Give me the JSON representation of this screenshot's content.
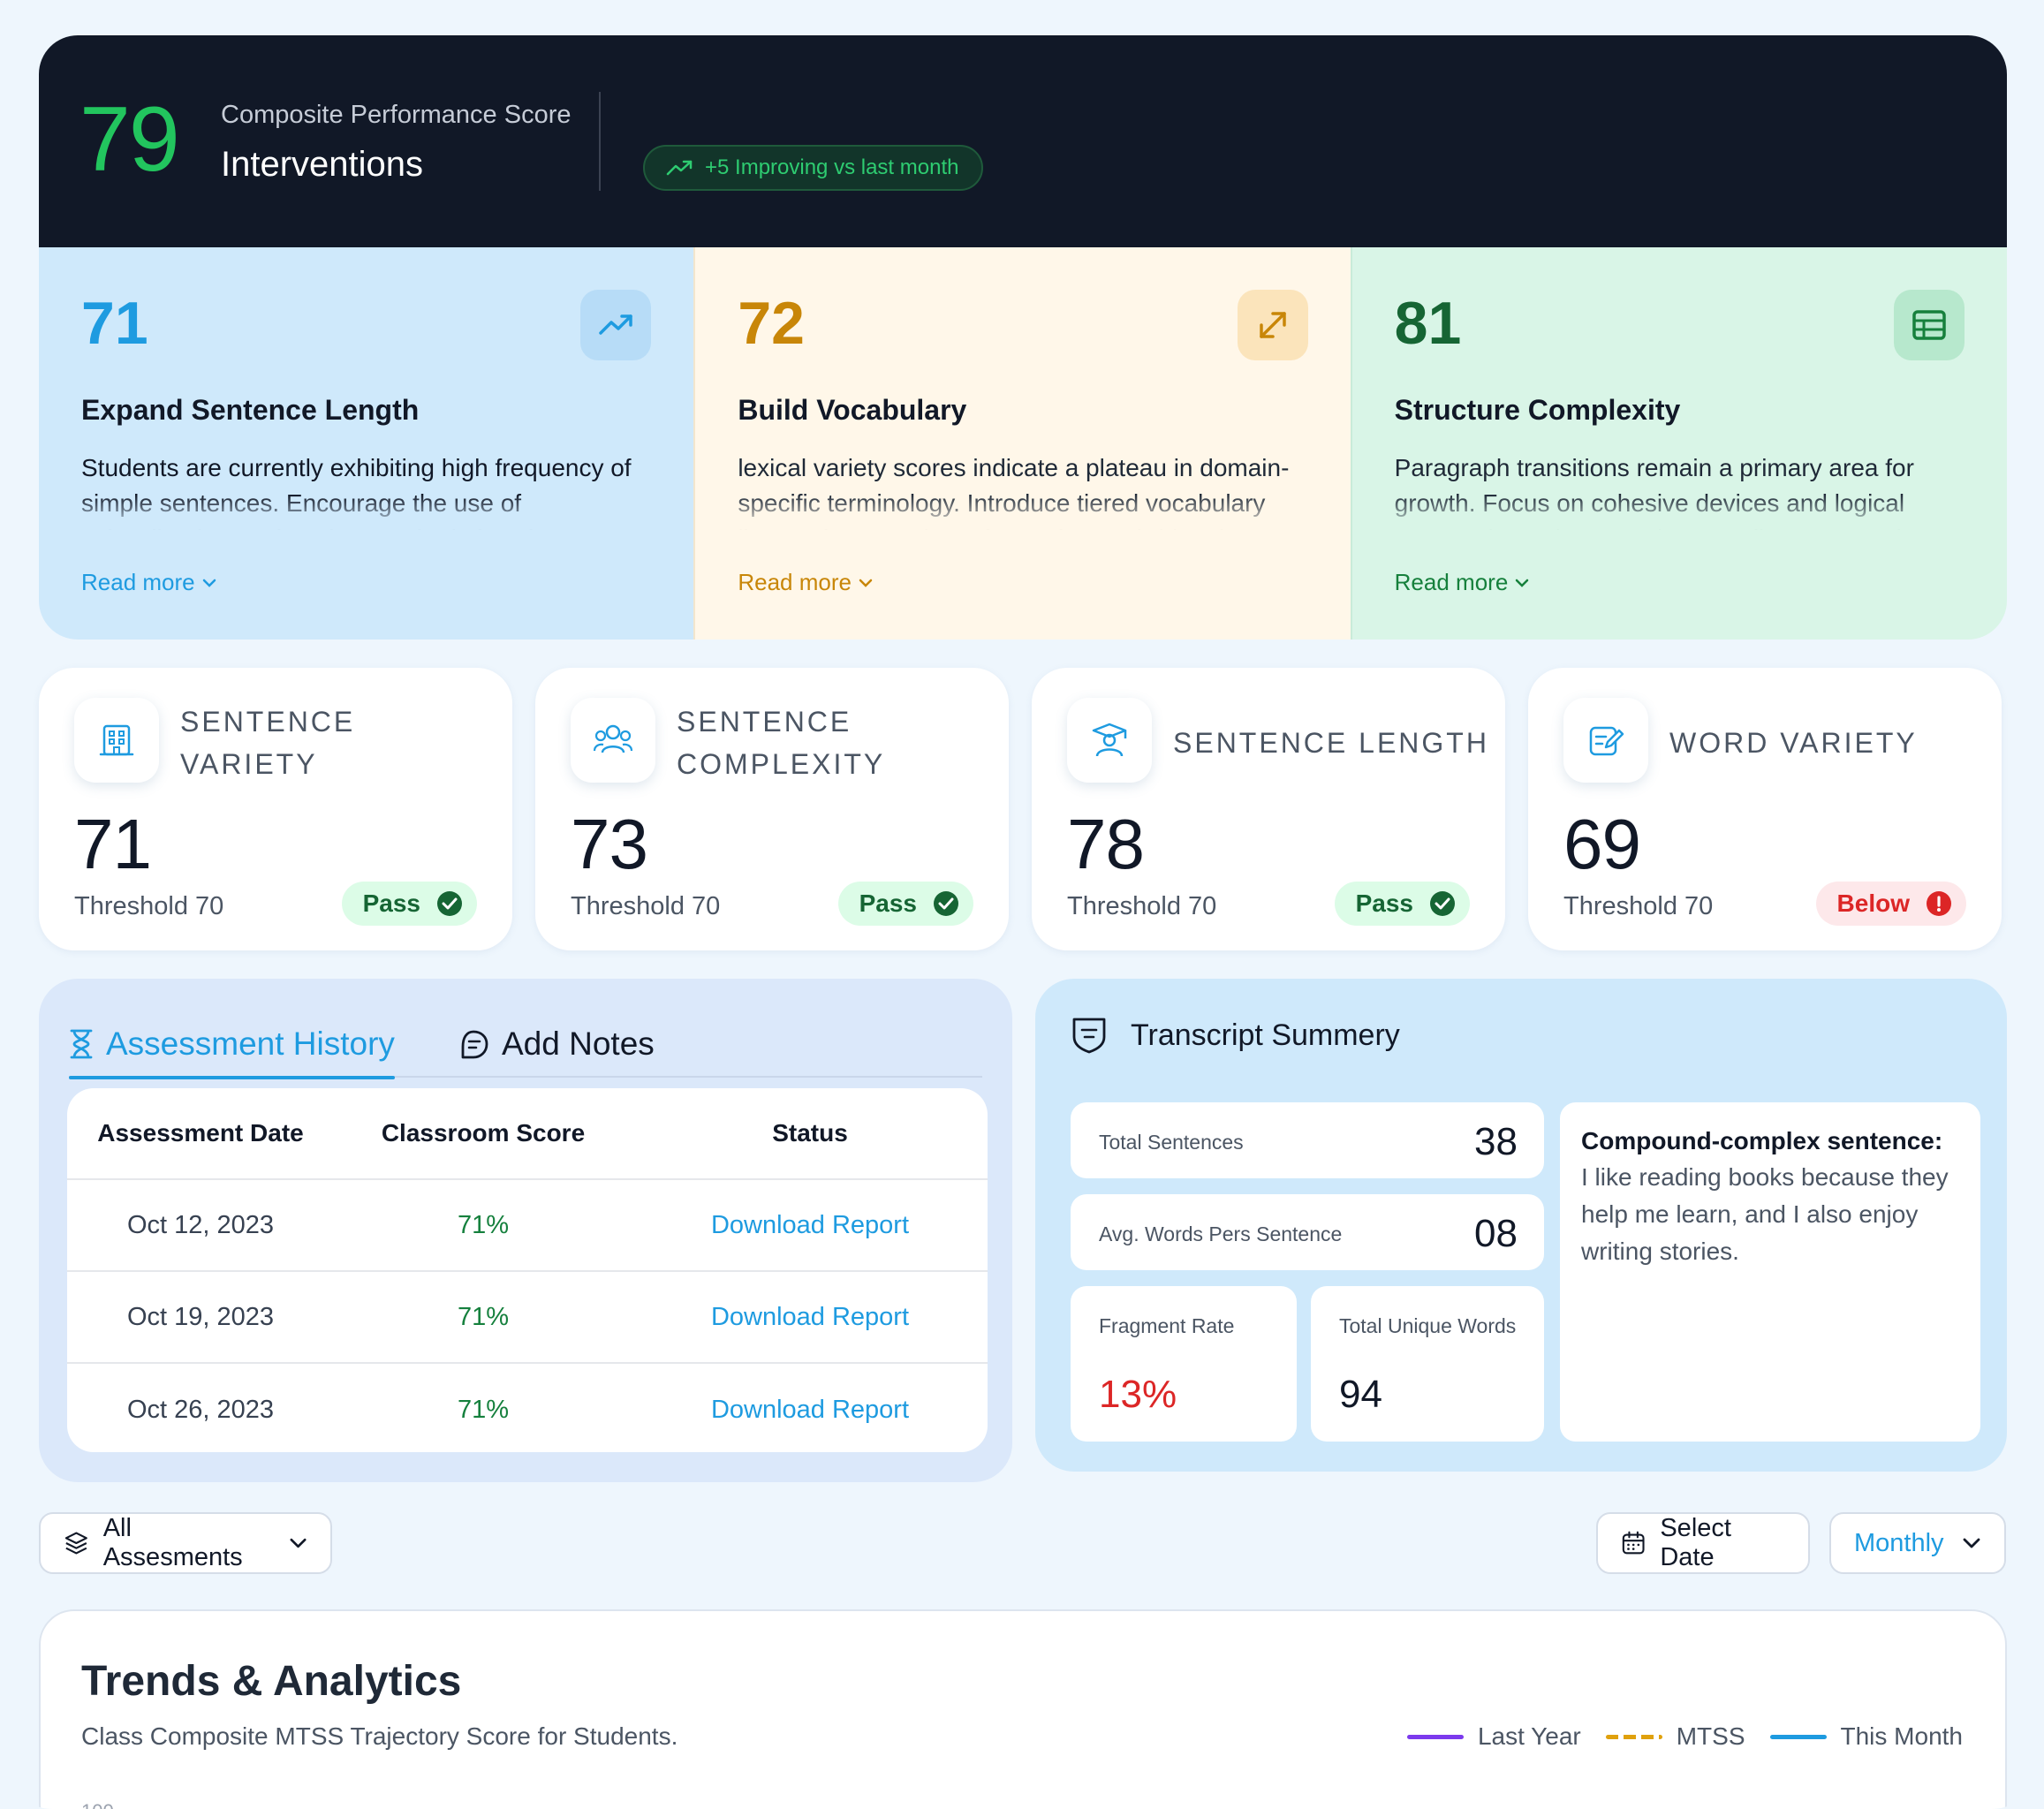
{
  "header": {
    "score": "79",
    "subtitle": "Composite Performance Score",
    "title": "Interventions",
    "trend_badge": "+5 Improving vs last month"
  },
  "recommendations": [
    {
      "score": "71",
      "title": "Expand Sentence Length",
      "description": "Students are currently exhibiting high frequency of simple sentences. Encourage the use of subordinating conjunctions and relative clauses to",
      "link": "Read more",
      "icon": "trending-up-icon"
    },
    {
      "score": "72",
      "title": "Build Vocabulary",
      "description": "lexical variety scores indicate a plateau in domain-specific terminology. Introduce tiered vocabulary lists and context-based exercises to bridge the",
      "link": "Read more",
      "icon": "expand-arrows-icon"
    },
    {
      "score": "81",
      "title": "Structure Complexity",
      "description": "Paragraph transitions remain a primary area for growth. Focus on cohesive devices and logical sequencing to improve the overall argumentative",
      "link": "Read more",
      "icon": "table-icon"
    }
  ],
  "metrics": [
    {
      "label": "SENTENCE VARIETY",
      "value": "71",
      "threshold": "Threshold 70",
      "status": "Pass",
      "icon": "building-icon"
    },
    {
      "label": "SENTENCE COMPLEXITY",
      "value": "73",
      "threshold": "Threshold 70",
      "status": "Pass",
      "icon": "users-icon"
    },
    {
      "label": "SENTENCE LENGTH",
      "value": "78",
      "threshold": "Threshold 70",
      "status": "Pass",
      "icon": "graduate-icon"
    },
    {
      "label": "WORD VARIETY",
      "value": "69",
      "threshold": "Threshold 70",
      "status": "Below",
      "icon": "edit-icon"
    }
  ],
  "assessment": {
    "tabs": [
      "Assessment History",
      "Add Notes"
    ],
    "columns": [
      "Assessment Date",
      "Classroom Score",
      "Status"
    ],
    "rows": [
      {
        "date": "Oct 12, 2023",
        "score": "71%",
        "status": "Download Report"
      },
      {
        "date": "Oct 19, 2023",
        "score": "71%",
        "status": "Download Report"
      },
      {
        "date": "Oct 26, 2023",
        "score": "71%",
        "status": "Download Report"
      }
    ]
  },
  "transcript": {
    "title": "Transcript Summery",
    "total_sentences_label": "Total Sentences",
    "total_sentences": "38",
    "avg_words_label": "Avg. Words Pers Sentence",
    "avg_words": "08",
    "fragment_label": "Fragment Rate",
    "fragment": "13%",
    "unique_label": "Total Unique Words",
    "unique": "94",
    "example_heading": "Compound-complex sentence:",
    "example_body": "I like reading books because they help me learn, and I also enjoy writing stories."
  },
  "filters": {
    "assessments": "All Assesments",
    "date": "Select Date",
    "period": "Monthly"
  },
  "trends": {
    "title": "Trends & Analytics",
    "subtitle": "Class Composite MTSS Trajectory Score for Students.",
    "legend": [
      "Last Year",
      "MTSS",
      "This Month"
    ],
    "top_tick": "100"
  },
  "colors": {
    "accent_blue": "#1e9be0",
    "success": "#22c55e",
    "danger": "#dc2626",
    "last_year": "#7c3aed",
    "mtss": "#e0a10d",
    "this_month": "#1e9be0"
  }
}
